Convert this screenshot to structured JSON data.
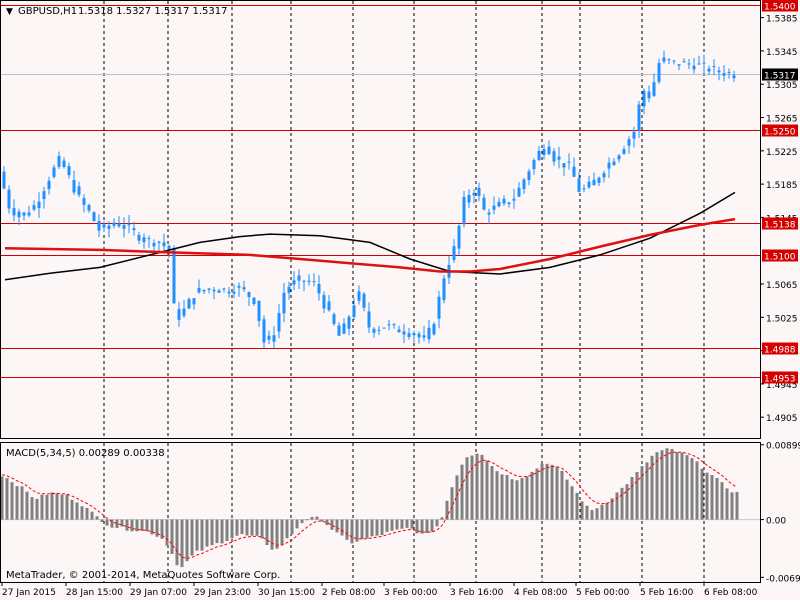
{
  "header": {
    "symbol": "GBPUSD,H1",
    "ohlc": "1.5318 1.5327 1.5317 1.5317",
    "arrow": "▼"
  },
  "price_axis": {
    "ticks": [
      "1.5385",
      "1.5345",
      "1.5305",
      "1.5265",
      "1.5225",
      "1.5185",
      "1.5145",
      "1.5065",
      "1.5025",
      "1.4985",
      "1.4945",
      "1.4905"
    ],
    "min": 1.488,
    "max": 1.5405
  },
  "levels": [
    {
      "label": "1.5400",
      "value": 1.54
    },
    {
      "label": "1.5250",
      "value": 1.525
    },
    {
      "label": "1.5138",
      "value": 1.5138
    },
    {
      "label": "1.5100",
      "value": 1.51
    },
    {
      "label": "1.4988",
      "value": 1.4988
    },
    {
      "label": "1.4953",
      "value": 1.4953
    }
  ],
  "current_price": {
    "label": "1.5317",
    "value": 1.5317
  },
  "time_axis": [
    "27 Jan 2015",
    "28 Jan 15:00",
    "29 Jan 07:00",
    "29 Jan 23:00",
    "30 Jan 15:00",
    "2 Feb 08:00",
    "3 Feb 00:00",
    "3 Feb 16:00",
    "4 Feb 08:00",
    "5 Feb 00:00",
    "5 Feb 16:00",
    "6 Feb 08:00"
  ],
  "macd": {
    "label": "MACD(5,34,5) 0.00289 0.00338",
    "ticks": [
      "0.00899",
      "0.00",
      "-0.00694"
    ],
    "min": -0.0075,
    "max": 0.0092
  },
  "copyright": "MetaTrader, © 2001-2014, MetaQuotes Software Corp.",
  "colors": {
    "background": "#fdf6f6",
    "candle": "#1e90ff",
    "level": "#d40000",
    "grid": "#000000",
    "ma_slow": "#000000",
    "ma_red": "#dd1111",
    "macd_hist": "#808080",
    "macd_signal": "#ff0000"
  },
  "chart_data": {
    "type": "candlestick",
    "price_path": [
      [
        0,
        1.52
      ],
      [
        8,
        1.516
      ],
      [
        20,
        1.5145
      ],
      [
        35,
        1.516
      ],
      [
        50,
        1.5195
      ],
      [
        60,
        1.5215
      ],
      [
        70,
        1.519
      ],
      [
        80,
        1.5165
      ],
      [
        90,
        1.515
      ],
      [
        100,
        1.5128
      ],
      [
        115,
        1.514
      ],
      [
        130,
        1.513
      ],
      [
        145,
        1.5118
      ],
      [
        160,
        1.5115
      ],
      [
        170,
        1.5105
      ],
      [
        175,
        1.502
      ],
      [
        185,
        1.5035
      ],
      [
        195,
        1.5055
      ],
      [
        210,
        1.506
      ],
      [
        225,
        1.5058
      ],
      [
        240,
        1.506
      ],
      [
        255,
        1.5045
      ],
      [
        265,
        1.499
      ],
      [
        275,
        1.501
      ],
      [
        285,
        1.506
      ],
      [
        300,
        1.507
      ],
      [
        315,
        1.5065
      ],
      [
        330,
        1.5025
      ],
      [
        340,
        1.5
      ],
      [
        350,
        1.503
      ],
      [
        358,
        1.5055
      ],
      [
        370,
        1.501
      ],
      [
        385,
        1.5015
      ],
      [
        400,
        1.501
      ],
      [
        415,
        1.5005
      ],
      [
        425,
        1.4995
      ],
      [
        435,
        1.5025
      ],
      [
        445,
        1.508
      ],
      [
        455,
        1.511
      ],
      [
        465,
        1.517
      ],
      [
        475,
        1.518
      ],
      [
        485,
        1.515
      ],
      [
        500,
        1.516
      ],
      [
        515,
        1.517
      ],
      [
        530,
        1.5205
      ],
      [
        545,
        1.5235
      ],
      [
        555,
        1.5215
      ],
      [
        570,
        1.5205
      ],
      [
        580,
        1.5175
      ],
      [
        592,
        1.5185
      ],
      [
        605,
        1.5205
      ],
      [
        620,
        1.5225
      ],
      [
        635,
        1.525
      ],
      [
        642,
        1.53
      ],
      [
        650,
        1.529
      ],
      [
        660,
        1.5335
      ],
      [
        675,
        1.533
      ],
      [
        690,
        1.533
      ],
      [
        705,
        1.5325
      ],
      [
        720,
        1.532
      ],
      [
        735,
        1.5317
      ]
    ],
    "ma_slow": [
      [
        5,
        1.507
      ],
      [
        50,
        1.5078
      ],
      [
        100,
        1.5085
      ],
      [
        150,
        1.51
      ],
      [
        200,
        1.5115
      ],
      [
        240,
        1.5122
      ],
      [
        270,
        1.5125
      ],
      [
        320,
        1.5123
      ],
      [
        370,
        1.5115
      ],
      [
        410,
        1.5095
      ],
      [
        450,
        1.508
      ],
      [
        500,
        1.5077
      ],
      [
        550,
        1.5085
      ],
      [
        600,
        1.51
      ],
      [
        650,
        1.512
      ],
      [
        700,
        1.515
      ],
      [
        735,
        1.5175
      ]
    ],
    "ma_red": [
      [
        5,
        1.5108
      ],
      [
        100,
        1.5106
      ],
      [
        170,
        1.5103
      ],
      [
        250,
        1.51
      ],
      [
        300,
        1.5095
      ],
      [
        350,
        1.509
      ],
      [
        400,
        1.5085
      ],
      [
        440,
        1.508
      ],
      [
        470,
        1.508
      ],
      [
        500,
        1.5083
      ],
      [
        550,
        1.5095
      ],
      [
        600,
        1.511
      ],
      [
        650,
        1.5124
      ],
      [
        700,
        1.5136
      ],
      [
        735,
        1.5143
      ]
    ],
    "macd_path": [
      [
        0,
        0.0055
      ],
      [
        20,
        0.004
      ],
      [
        35,
        0.0025
      ],
      [
        50,
        0.0032
      ],
      [
        65,
        0.003
      ],
      [
        80,
        0.002
      ],
      [
        95,
        0.0005
      ],
      [
        110,
        -0.0008
      ],
      [
        130,
        -0.0012
      ],
      [
        150,
        -0.0015
      ],
      [
        165,
        -0.0025
      ],
      [
        180,
        -0.006
      ],
      [
        195,
        -0.004
      ],
      [
        215,
        -0.003
      ],
      [
        240,
        -0.0018
      ],
      [
        260,
        -0.0022
      ],
      [
        275,
        -0.0038
      ],
      [
        290,
        -0.002
      ],
      [
        305,
        0.0001
      ],
      [
        320,
        0.0002
      ],
      [
        335,
        -0.0015
      ],
      [
        350,
        -0.0028
      ],
      [
        370,
        -0.0022
      ],
      [
        390,
        -0.0015
      ],
      [
        410,
        -0.001
      ],
      [
        425,
        -0.002
      ],
      [
        440,
        -0.0005
      ],
      [
        450,
        0.0035
      ],
      [
        465,
        0.0075
      ],
      [
        480,
        0.0082
      ],
      [
        495,
        0.006
      ],
      [
        515,
        0.0048
      ],
      [
        530,
        0.0055
      ],
      [
        545,
        0.007
      ],
      [
        560,
        0.006
      ],
      [
        575,
        0.0035
      ],
      [
        590,
        0.001
      ],
      [
        605,
        0.002
      ],
      [
        620,
        0.0035
      ],
      [
        640,
        0.006
      ],
      [
        655,
        0.008
      ],
      [
        670,
        0.0085
      ],
      [
        690,
        0.0075
      ],
      [
        710,
        0.0055
      ],
      [
        725,
        0.004
      ],
      [
        735,
        0.0032
      ]
    ]
  }
}
